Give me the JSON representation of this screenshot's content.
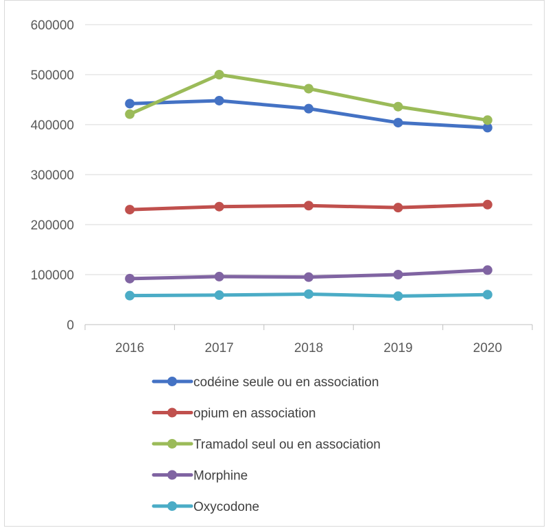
{
  "chart_data": {
    "type": "line",
    "title": "",
    "xlabel": "",
    "ylabel": "",
    "categories": [
      "2016",
      "2017",
      "2018",
      "2019",
      "2020"
    ],
    "ylim": [
      0,
      600000
    ],
    "yticks": [
      0,
      100000,
      200000,
      300000,
      400000,
      500000,
      600000
    ],
    "grid": true,
    "legend_position": "bottom",
    "series": [
      {
        "name": "codéine seule ou en association",
        "color": "#4472c4",
        "values": [
          442000,
          448000,
          432000,
          404000,
          394000
        ]
      },
      {
        "name": "opium en association",
        "color": "#c0504d",
        "values": [
          230000,
          236000,
          238000,
          234000,
          240000
        ]
      },
      {
        "name": "Tramadol seul ou en association",
        "color": "#9bbb59",
        "values": [
          421000,
          500000,
          472000,
          436000,
          409000
        ]
      },
      {
        "name": "Morphine",
        "color": "#8064a2",
        "values": [
          92000,
          96000,
          95000,
          100000,
          109000
        ]
      },
      {
        "name": "Oxycodone",
        "color": "#4bacc6",
        "values": [
          58000,
          59000,
          61000,
          57000,
          60000
        ]
      }
    ]
  }
}
